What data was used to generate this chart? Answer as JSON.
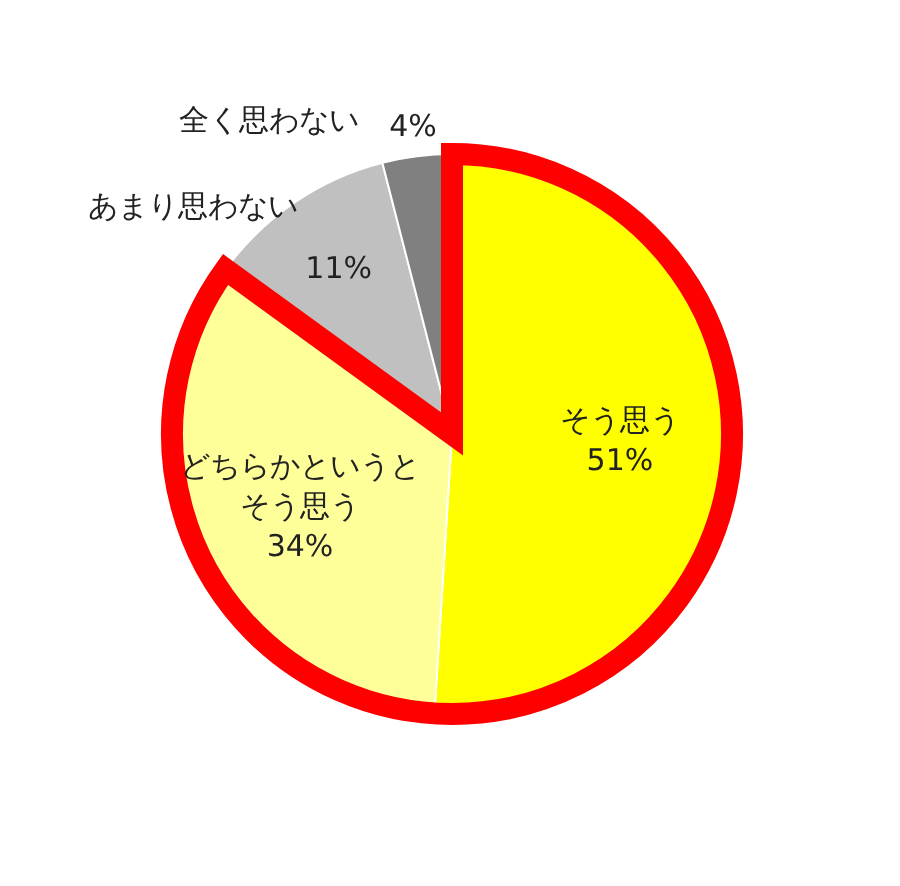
{
  "chart_data": {
    "type": "pie",
    "categories": [
      "そう思う",
      "どちらかというとそう思う",
      "あまり思わない",
      "全く思わない"
    ],
    "values": [
      51,
      34,
      11,
      4
    ],
    "value_labels": [
      "51%",
      "34%",
      "11%",
      "4%"
    ],
    "colors": [
      "#ffff00",
      "#ffff99",
      "#c0c0c0",
      "#808080"
    ]
  }
}
